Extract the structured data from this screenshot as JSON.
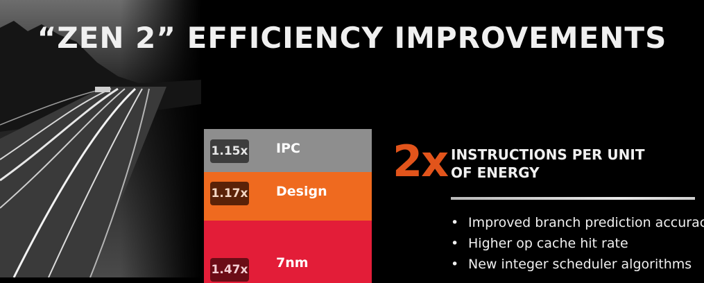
{
  "title": "“ZEN 2” EFFICIENCY IMPROVEMENTS",
  "stack": [
    {
      "multiplier": "1.15x",
      "label": "IPC"
    },
    {
      "multiplier": "1.17x",
      "label": "Design"
    },
    {
      "multiplier": "1.47x",
      "label": "7nm"
    }
  ],
  "highlight": {
    "value": "2x",
    "heading_line1": "INSTRUCTIONS PER UNIT",
    "heading_line2": "OF ENERGY"
  },
  "bullets": [
    "Improved branch prediction accuracy",
    "Higher op cache hit rate",
    "New integer scheduler algorithms"
  ],
  "colors": {
    "ipc": "#8e8e8e",
    "design": "#ef6a1f",
    "node": "#e31d38",
    "accent": "#e2541b"
  }
}
